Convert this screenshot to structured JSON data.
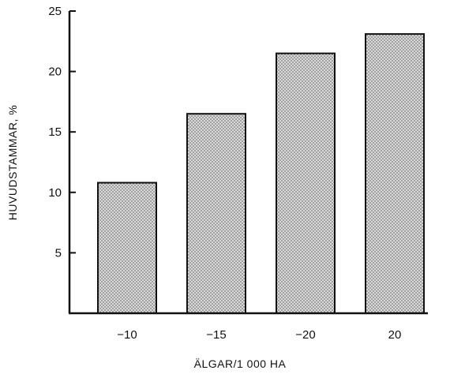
{
  "chart_data": {
    "type": "bar",
    "title": "",
    "xlabel": "ÄLGAR/1 000 HA",
    "ylabel": "HUVUDSTAMMAR, %",
    "categories": [
      "−10",
      "−15",
      "−20",
      "20"
    ],
    "values": [
      10.8,
      16.5,
      21.5,
      23.1
    ],
    "ylim": [
      0,
      25
    ],
    "yticks": [
      5,
      10,
      15,
      20,
      25
    ],
    "grid": false,
    "bar_fill": "stippled grey",
    "colors": {
      "bar_fill": "#d6d6d6",
      "bar_dots": "#555555",
      "axis": "#111111"
    }
  }
}
